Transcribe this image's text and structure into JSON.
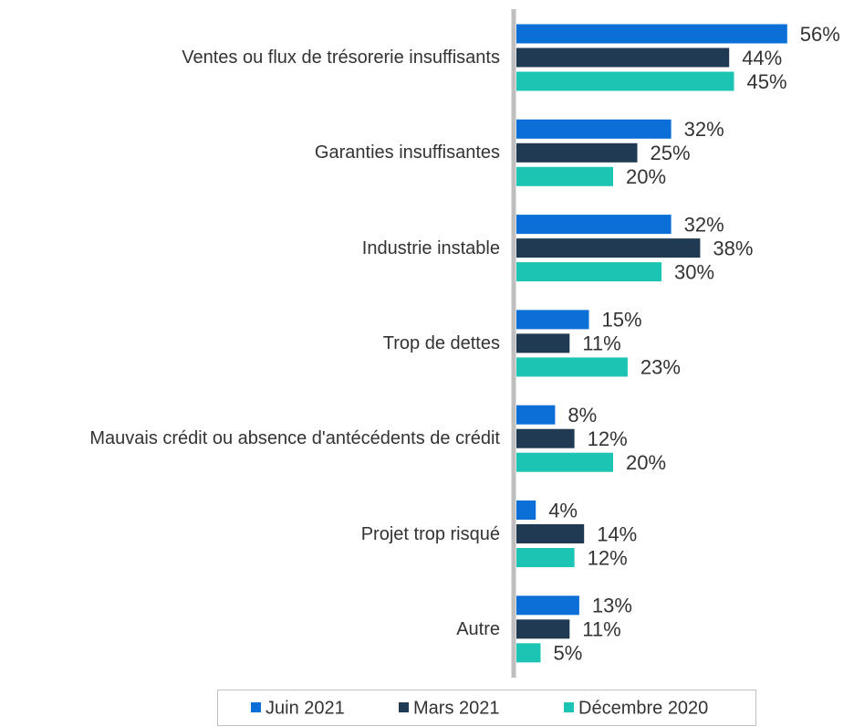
{
  "chart_data": {
    "type": "bar",
    "orientation": "horizontal",
    "categories": [
      "Ventes ou flux de trésorerie insuffisants",
      "Garanties insuffisantes",
      "Industrie instable",
      "Trop de dettes",
      "Mauvais crédit ou absence d'antécédents de crédit",
      "Projet trop risqué",
      "Autre"
    ],
    "series": [
      {
        "name": "Juin 2021",
        "color": "#0a6fd6",
        "values": [
          56,
          32,
          32,
          15,
          8,
          4,
          13
        ],
        "value_labels": [
          "56%",
          "32%",
          "32%",
          "15%",
          "8%",
          "4%",
          "13%"
        ]
      },
      {
        "name": "Mars 2021",
        "color": "#1f3a52",
        "values": [
          44,
          25,
          38,
          11,
          12,
          14,
          11
        ],
        "value_labels": [
          "44%",
          "25%",
          "38%",
          "11%",
          "12%",
          "14%",
          "11%"
        ]
      },
      {
        "name": "Décembre 2020",
        "color": "#1cc4b4",
        "values": [
          45,
          20,
          30,
          23,
          20,
          12,
          5
        ],
        "value_labels": [
          "45%",
          "20%",
          "30%",
          "23%",
          "20%",
          "12%",
          "5%"
        ]
      }
    ],
    "legend": "bottom"
  }
}
